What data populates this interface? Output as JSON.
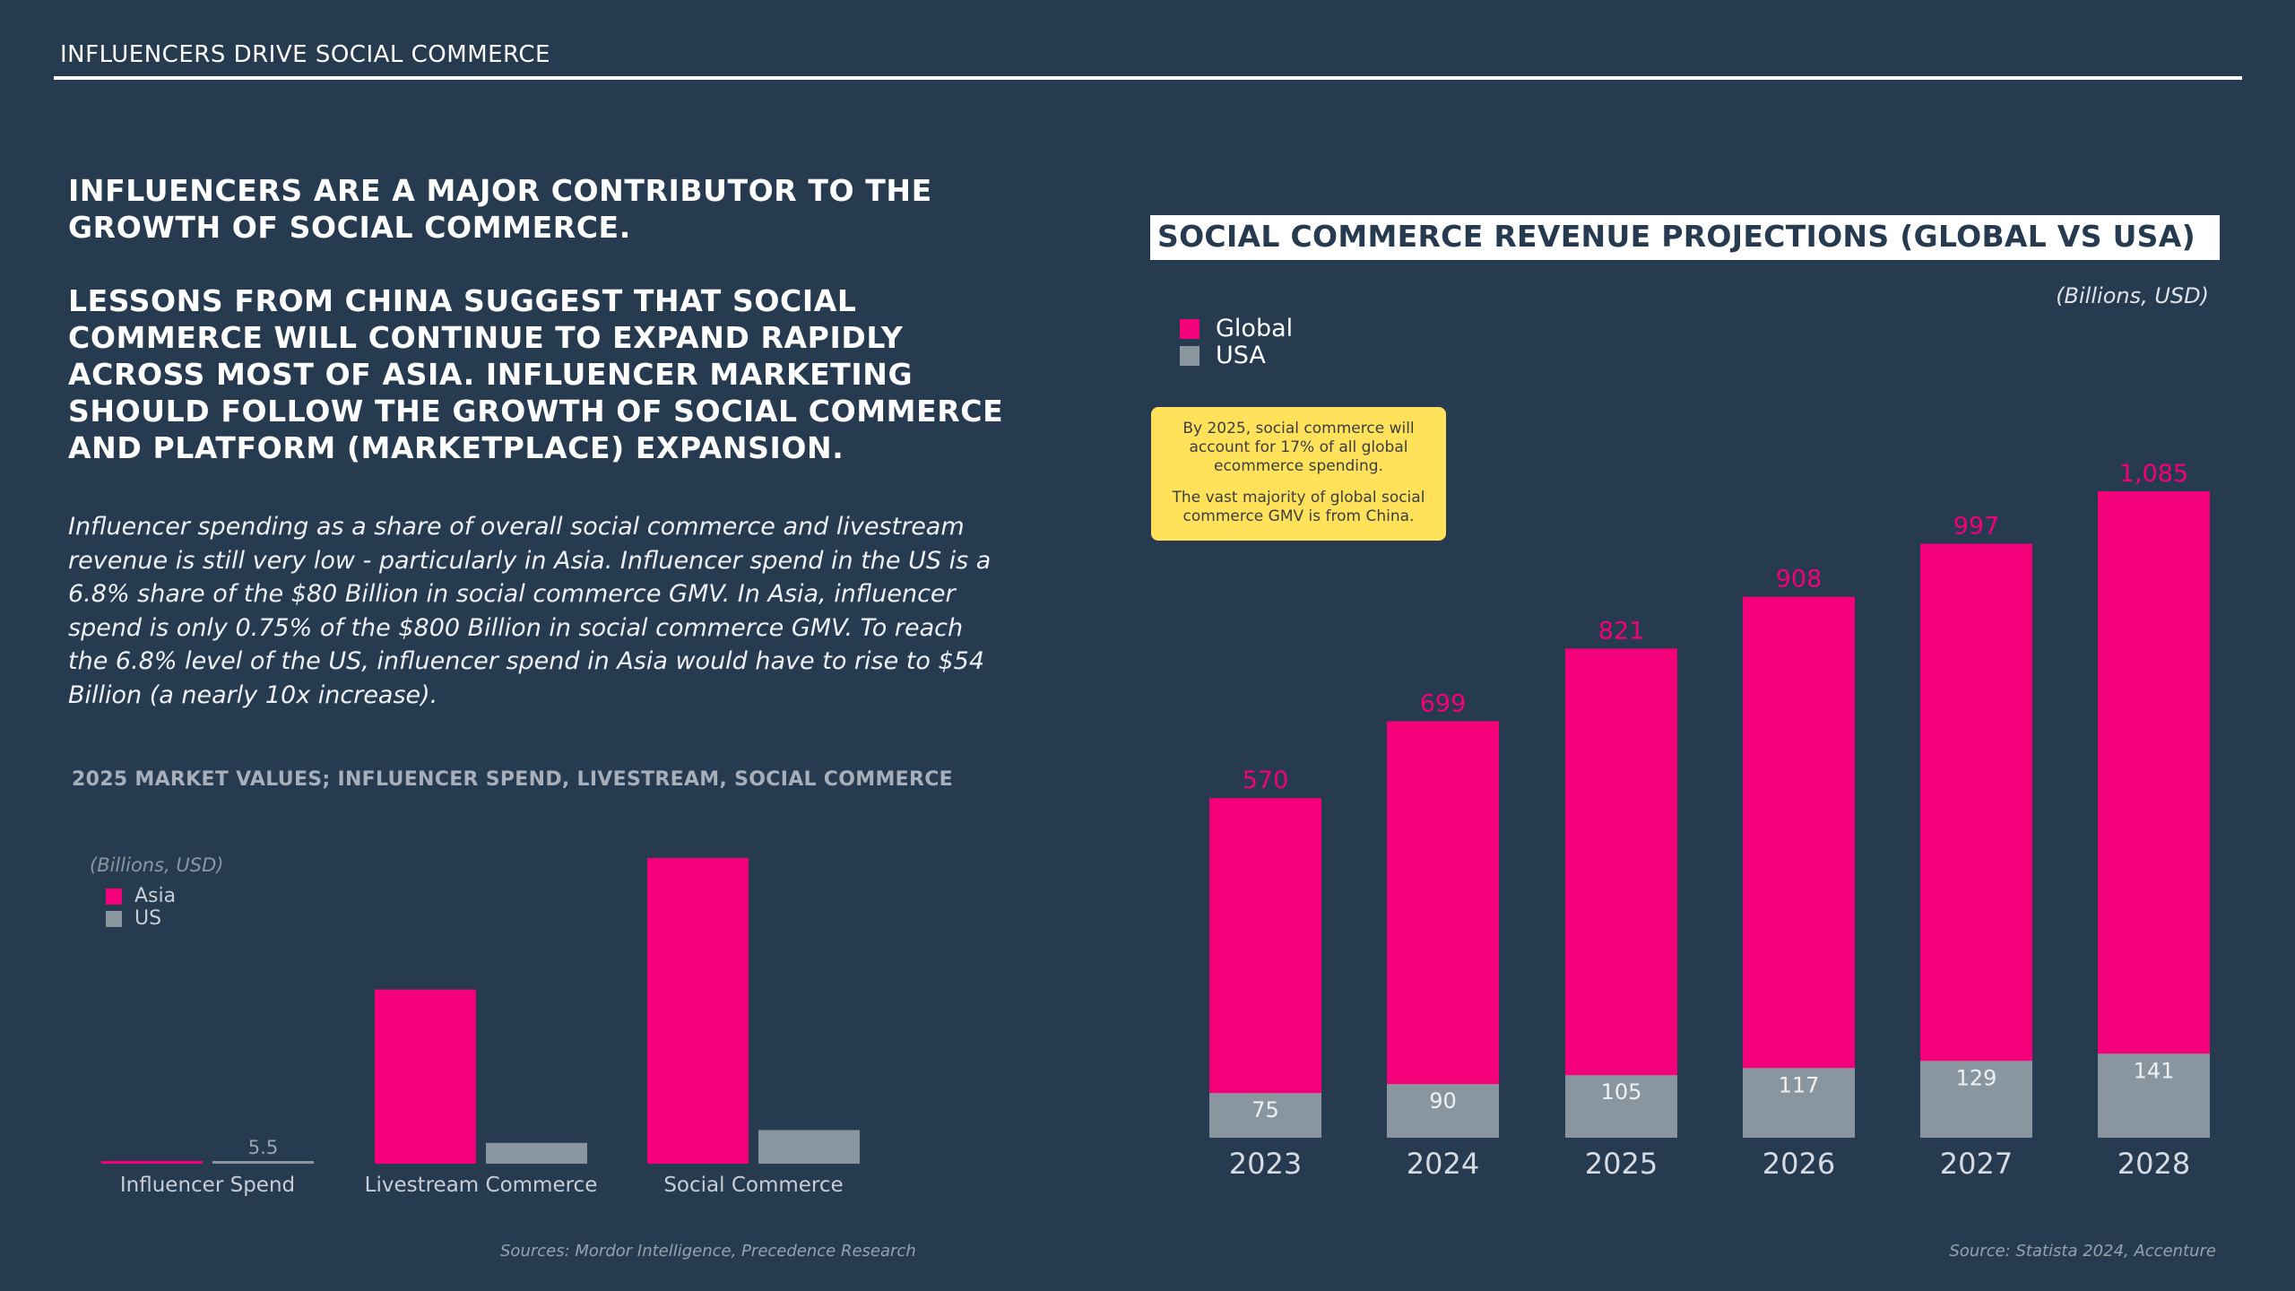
{
  "header": {
    "title": "INFLUENCERS DRIVE SOCIAL COMMERCE"
  },
  "lead": {
    "p1": "INFLUENCERS ARE A MAJOR CONTRIBUTOR TO THE GROWTH OF SOCIAL COMMERCE.",
    "p2": "LESSONS FROM CHINA SUGGEST THAT SOCIAL COMMERCE WILL CONTINUE TO EXPAND RAPIDLY ACROSS MOST OF ASIA. INFLUENCER MARKETING SHOULD FOLLOW THE GROWTH OF SOCIAL COMMERCE AND PLATFORM (MARKETPLACE) EXPANSION."
  },
  "body": {
    "text": "Influencer spending as a share of overall social commerce and livestream revenue is still very low - particularly in Asia. Influencer spend in the US is a 6.8% share of the $80 Billion in social commerce GMV. In Asia, influencer spend is only 0.75% of the $800 Billion in social commerce GMV. To reach the 6.8% level of the US, influencer spend in Asia would have to rise to $54 Billion (a nearly 10x increase)."
  },
  "callout": {
    "line1": "By 2025, social commerce will account for 17% of all global ecommerce spending.",
    "line2": "The vast majority of global social commerce GMV is from China."
  },
  "colors": {
    "pink": "#f5007b",
    "grey": "#8a969f",
    "background": "#263a50"
  },
  "chart_data": [
    {
      "type": "bar",
      "title": "2025 MARKET VALUES; INFLUENCER SPEND, LIVESTREAM, SOCIAL COMMERCE",
      "units": "(Billions, USD)",
      "categories": [
        "Influencer Spend",
        "Livestream Commerce",
        "Social Commerce"
      ],
      "series": [
        {
          "name": "Asia",
          "values": [
            6,
            570,
            1000
          ]
        },
        {
          "name": "US",
          "values": [
            5.5,
            68,
            110
          ]
        }
      ],
      "data_labels": {
        "US": [
          "5.5",
          "",
          ""
        ]
      },
      "ylim": [
        0,
        1050
      ],
      "legend": "top-left",
      "source": "Sources: Mordor Intelligence,  Precedence Research"
    },
    {
      "type": "bar",
      "title": "SOCIAL COMMERCE REVENUE PROJECTIONS (GLOBAL VS USA)",
      "units": "(Billions, USD)",
      "categories": [
        "2023",
        "2024",
        "2025",
        "2026",
        "2027",
        "2028"
      ],
      "series": [
        {
          "name": "Global",
          "values": [
            570,
            699,
            821,
            908,
            997,
            1085
          ],
          "labels": [
            "570",
            "699",
            "821",
            "908",
            "997",
            "1,085"
          ]
        },
        {
          "name": "USA",
          "values": [
            75,
            90,
            105,
            117,
            129,
            141
          ],
          "labels": [
            "75",
            "90",
            "105",
            "117",
            "129",
            "141"
          ]
        }
      ],
      "ylim": [
        0,
        1100
      ],
      "legend": "top-left",
      "source": "Source: Statista 2024, Accenture"
    }
  ]
}
